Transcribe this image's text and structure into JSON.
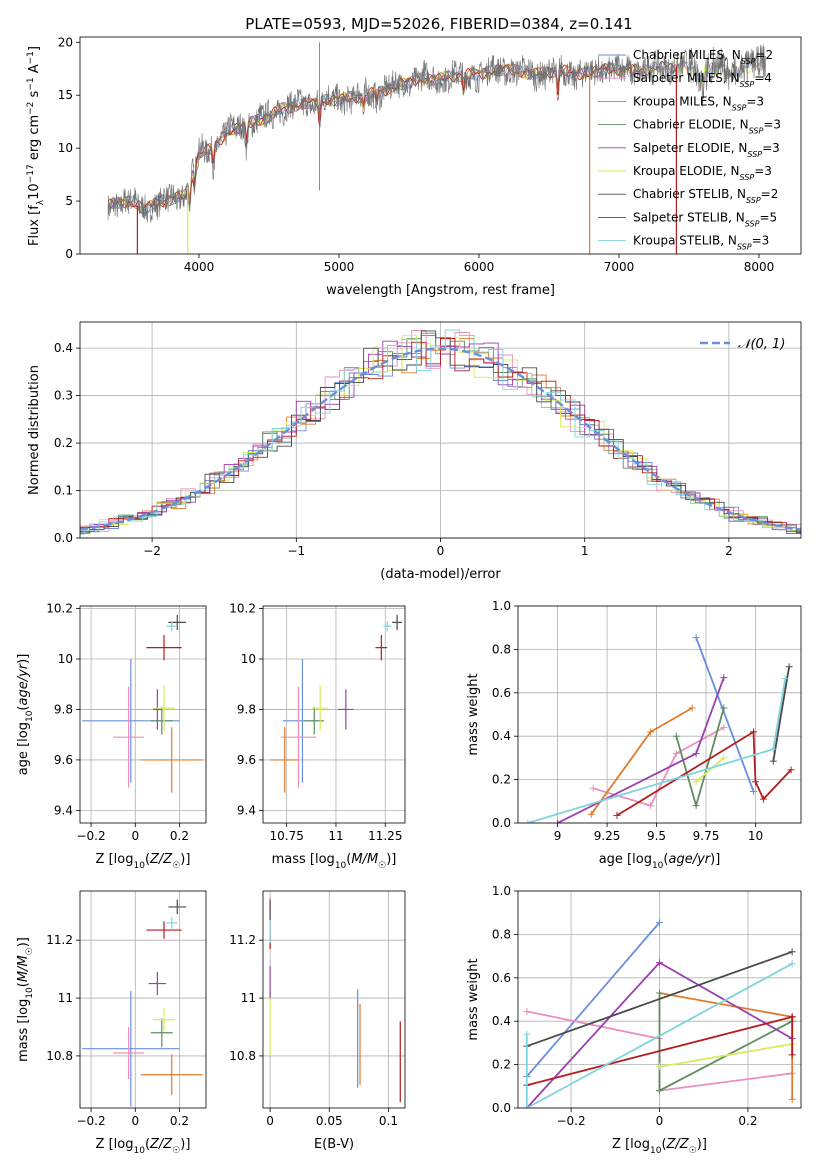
{
  "figure_title": "PLATE=0593, MJD=52026, FIBERID=0384, z=0.141",
  "colors": [
    "#6a8fde",
    "#e98fbf",
    "#e07b2a",
    "#5f8d5f",
    "#9a3fb0",
    "#d8ec5a",
    "#4a4a4a",
    "#b51c1c",
    "#7fd3dc"
  ],
  "chart_data": [
    {
      "id": "spectrum",
      "type": "line",
      "title": "PLATE=0593, MJD=52026, FIBERID=0384, z=0.141",
      "xlabel": "wavelength [Angstrom, rest frame]",
      "ylabel": "Flux [f_λ 10^-17 erg cm^-2 s^-1 A^-1]",
      "xlim": [
        3150,
        8300
      ],
      "ylim": [
        0,
        20.5
      ],
      "xticks": [
        4000,
        5000,
        6000,
        7000,
        8000
      ],
      "yticks": [
        0,
        5,
        10,
        15,
        20
      ],
      "grid": false,
      "legend_position": "upper right",
      "data_wavelength": [
        3350,
        3400,
        3500,
        3600,
        3700,
        3800,
        3900,
        4000,
        4100,
        4200,
        4300,
        4400,
        4500,
        4600,
        4700,
        4800,
        4900,
        5000,
        5100,
        5200,
        5300,
        5400,
        5500,
        5600,
        5700,
        5800,
        5900,
        6000,
        6100,
        6200,
        6300,
        6400,
        6500,
        6600,
        6700,
        6800,
        6900,
        7000,
        7100,
        7200,
        7300,
        7400,
        7500,
        7600,
        7700,
        7800,
        7900,
        8000,
        8050
      ],
      "data_flux": [
        4.5,
        4.8,
        5.0,
        4.3,
        4.8,
        5.2,
        5.5,
        9.5,
        10.0,
        11.5,
        12.0,
        12.5,
        13.0,
        13.8,
        14.0,
        14.3,
        14.5,
        14.6,
        14.8,
        15.0,
        15.4,
        15.8,
        16.3,
        16.6,
        16.5,
        16.8,
        16.9,
        17.0,
        17.3,
        17.5,
        17.2,
        17.0,
        17.2,
        17.3,
        17.0,
        17.1,
        17.5,
        17.4,
        17.3,
        17.5,
        17.6,
        17.8,
        17.5,
        17.3,
        17.6,
        17.2,
        17.5,
        18.0,
        18.2
      ],
      "series": [
        {
          "name": "Chabrier MILES, N_SSP=2",
          "label_main": "Chabrier MILES, N",
          "label_sub": "SSP",
          "label_tail": "=2"
        },
        {
          "name": "Salpeter MILES, N_SSP=4",
          "label_main": "Salpeter MILES, N",
          "label_sub": "SSP",
          "label_tail": "=4"
        },
        {
          "name": "Kroupa MILES, N_SSP=3",
          "label_main": "Kroupa MILES, N",
          "label_sub": "SSP",
          "label_tail": "=3"
        },
        {
          "name": "Chabrier ELODIE, N_SSP=3",
          "label_main": "Chabrier ELODIE, N",
          "label_sub": "SSP",
          "label_tail": "=3"
        },
        {
          "name": "Salpeter ELODIE, N_SSP=3",
          "label_main": "Salpeter ELODIE, N",
          "label_sub": "SSP",
          "label_tail": "=3"
        },
        {
          "name": "Kroupa ELODIE, N_SSP=3",
          "label_main": "Kroupa ELODIE, N",
          "label_sub": "SSP",
          "label_tail": "=3"
        },
        {
          "name": "Chabrier STELIB, N_SSP=2",
          "label_main": "Chabrier STELIB, N",
          "label_sub": "SSP",
          "label_tail": "=2"
        },
        {
          "name": "Salpeter STELIB, N_SSP=5",
          "label_main": "Salpeter STELIB, N",
          "label_sub": "SSP",
          "label_tail": "=5"
        },
        {
          "name": "Kroupa STELIB, N_SSP=3",
          "label_main": "Kroupa STELIB, N",
          "label_sub": "SSP",
          "label_tail": "=3"
        }
      ],
      "model_cutoffs": [
        {
          "series": 2,
          "x": 6790
        },
        {
          "series": 5,
          "x": 3920
        },
        {
          "series": 7,
          "x": 3560
        },
        {
          "series": 7,
          "x": 7410
        }
      ]
    },
    {
      "id": "residuals",
      "type": "line",
      "xlabel": "(data-model)/error",
      "ylabel": "Normed distribution",
      "xlim": [
        -2.5,
        2.5
      ],
      "ylim": [
        0,
        0.455
      ],
      "xticks": [
        -2,
        -1,
        0,
        1,
        2
      ],
      "yticks": [
        0.0,
        0.1,
        0.2,
        0.3,
        0.4
      ],
      "grid": true,
      "legend": [
        {
          "name": "𝒩(0, 1)",
          "style": "dashed",
          "color": "#6a8fde"
        }
      ],
      "legend_position": "upper right",
      "bin_width": 0.1
    },
    {
      "id": "age_vs_Z",
      "type": "scatter",
      "xlabel": "Z [log10(Z/Z☉)]",
      "ylabel": "age [log10(age/yr)]",
      "xlim": [
        -0.25,
        0.32
      ],
      "ylim": [
        9.35,
        10.21
      ],
      "xticks": [
        -0.2,
        0.0,
        0.2
      ],
      "yticks": [
        9.4,
        9.6,
        9.8,
        10.0,
        10.2
      ],
      "grid": true,
      "points": [
        {
          "x": -0.02,
          "y": 9.755,
          "xerr": 0.22,
          "yerr": 0.245,
          "color": 0
        },
        {
          "x": -0.03,
          "y": 9.69,
          "xerr": 0.07,
          "yerr": 0.2,
          "color": 1
        },
        {
          "x": 0.165,
          "y": 9.6,
          "xerr": 0.14,
          "yerr": 0.13,
          "color": 2
        },
        {
          "x": 0.12,
          "y": 9.755,
          "xerr": 0.05,
          "yerr": 0.055,
          "color": 3
        },
        {
          "x": 0.1,
          "y": 9.8,
          "xerr": 0.02,
          "yerr": 0.08,
          "color": 4
        },
        {
          "x": 0.13,
          "y": 9.805,
          "xerr": 0.05,
          "yerr": 0.09,
          "color": 5
        },
        {
          "x": 0.19,
          "y": 10.145,
          "xerr": 0.04,
          "yerr": 0.03,
          "color": 6
        },
        {
          "x": 0.13,
          "y": 10.045,
          "xerr": 0.08,
          "yerr": 0.05,
          "color": 7
        },
        {
          "x": 0.165,
          "y": 10.13,
          "xerr": 0.025,
          "yerr": 0.02,
          "color": 8
        }
      ]
    },
    {
      "id": "age_vs_mass",
      "type": "scatter",
      "xlabel": "mass [log10(M/M☉)]",
      "xlim": [
        10.63,
        11.35
      ],
      "ylim": [
        9.35,
        10.21
      ],
      "xticks": [
        10.75,
        11.0,
        11.25
      ],
      "yticks": [
        9.4,
        9.6,
        9.8,
        10.0,
        10.2
      ],
      "grid": true,
      "points": [
        {
          "x": 10.83,
          "y": 9.755,
          "xerr": 0.1,
          "yerr": 0.245,
          "color": 0
        },
        {
          "x": 10.81,
          "y": 9.69,
          "xerr": 0.09,
          "yerr": 0.2,
          "color": 1
        },
        {
          "x": 10.74,
          "y": 9.6,
          "xerr": 0.07,
          "yerr": 0.13,
          "color": 2
        },
        {
          "x": 10.89,
          "y": 9.755,
          "xerr": 0.05,
          "yerr": 0.055,
          "color": 3
        },
        {
          "x": 11.05,
          "y": 9.8,
          "xerr": 0.04,
          "yerr": 0.08,
          "color": 4
        },
        {
          "x": 10.92,
          "y": 9.805,
          "xerr": 0.04,
          "yerr": 0.09,
          "color": 5
        },
        {
          "x": 11.31,
          "y": 10.145,
          "xerr": 0.025,
          "yerr": 0.03,
          "color": 6
        },
        {
          "x": 11.23,
          "y": 10.045,
          "xerr": 0.03,
          "yerr": 0.05,
          "color": 7
        },
        {
          "x": 11.26,
          "y": 10.13,
          "xerr": 0.02,
          "yerr": 0.02,
          "color": 8
        }
      ]
    },
    {
      "id": "mass_weight_vs_age",
      "type": "line",
      "xlabel": "age [log10(age/yr)]",
      "ylabel": "mass weight",
      "xlim": [
        8.8,
        10.23
      ],
      "ylim": [
        0.0,
        1.0
      ],
      "xticks": [
        9.0,
        9.25,
        9.5,
        9.75,
        10.0
      ],
      "yticks": [
        0.0,
        0.2,
        0.4,
        0.6,
        0.8,
        1.0
      ],
      "grid": true,
      "series": [
        {
          "color": 0,
          "x": [
            9.7,
            9.99
          ],
          "y": [
            0.855,
            0.145
          ]
        },
        {
          "color": 1,
          "x": [
            9.18,
            9.47,
            9.6,
            9.84
          ],
          "y": [
            0.16,
            0.08,
            0.32,
            0.44
          ]
        },
        {
          "color": 2,
          "x": [
            9.17,
            9.47,
            9.68
          ],
          "y": [
            0.04,
            0.42,
            0.53
          ]
        },
        {
          "color": 3,
          "x": [
            9.6,
            9.7,
            9.84
          ],
          "y": [
            0.4,
            0.08,
            0.53
          ]
        },
        {
          "color": 4,
          "x": [
            9.0,
            9.7,
            9.84
          ],
          "y": [
            0.0,
            0.32,
            0.67
          ]
        },
        {
          "color": 5,
          "x": [
            9.7,
            9.84
          ],
          "y": [
            0.19,
            0.3
          ]
        },
        {
          "color": 6,
          "x": [
            10.09,
            10.17
          ],
          "y": [
            0.285,
            0.72
          ]
        },
        {
          "color": 7,
          "x": [
            9.3,
            9.99,
            10.0,
            10.04,
            10.18
          ],
          "y": [
            0.035,
            0.42,
            0.19,
            0.11,
            0.245
          ]
        },
        {
          "color": 8,
          "x": [
            8.85,
            10.09,
            10.15
          ],
          "y": [
            0.0,
            0.34,
            0.665
          ]
        }
      ]
    },
    {
      "id": "mass_vs_Z",
      "type": "scatter",
      "xlabel": "Z [log10(Z/Z☉)]",
      "ylabel": "mass [log10(M/M☉)]",
      "xlim": [
        -0.25,
        0.32
      ],
      "ylim": [
        10.62,
        11.37
      ],
      "xticks": [
        -0.2,
        0.0,
        0.2
      ],
      "yticks": [
        10.8,
        11.0,
        11.2
      ],
      "grid": true,
      "points": [
        {
          "x": -0.02,
          "y": 10.825,
          "xerr": 0.22,
          "yerr": 0.2,
          "color": 0
        },
        {
          "x": -0.03,
          "y": 10.81,
          "xerr": 0.07,
          "yerr": 0.09,
          "color": 1
        },
        {
          "x": 0.165,
          "y": 10.735,
          "xerr": 0.14,
          "yerr": 0.07,
          "color": 2
        },
        {
          "x": 0.12,
          "y": 10.88,
          "xerr": 0.05,
          "yerr": 0.05,
          "color": 3
        },
        {
          "x": 0.1,
          "y": 11.05,
          "xerr": 0.04,
          "yerr": 0.04,
          "color": 4
        },
        {
          "x": 0.13,
          "y": 10.925,
          "xerr": 0.05,
          "yerr": 0.04,
          "color": 5
        },
        {
          "x": 0.19,
          "y": 11.315,
          "xerr": 0.04,
          "yerr": 0.025,
          "color": 6
        },
        {
          "x": 0.13,
          "y": 11.235,
          "xerr": 0.08,
          "yerr": 0.03,
          "color": 7
        },
        {
          "x": 0.165,
          "y": 11.26,
          "xerr": 0.025,
          "yerr": 0.02,
          "color": 8
        }
      ]
    },
    {
      "id": "mass_vs_EBV",
      "type": "scatter",
      "xlabel": "E(B-V)",
      "xlim": [
        -0.006,
        0.114
      ],
      "ylim": [
        10.62,
        11.37
      ],
      "xticks": [
        0.0,
        0.05,
        0.1
      ],
      "yticks": [
        10.8,
        11.0,
        11.2
      ],
      "grid": true,
      "points": [
        {
          "x": 0.074,
          "y": 10.86,
          "xerr": 0.0,
          "yerr": 0.17,
          "color": 0
        },
        {
          "x": 0.0,
          "y": 11.26,
          "xerr": 0.0,
          "yerr": 0.09,
          "color": 1
        },
        {
          "x": 0.076,
          "y": 10.84,
          "xerr": 0.0,
          "yerr": 0.14,
          "color": 2
        },
        {
          "x": 0.11,
          "y": 10.78,
          "xerr": 0.0,
          "yerr": 0.14,
          "color": 7
        },
        {
          "x": 0.0,
          "y": 11.05,
          "xerr": 0.0,
          "yerr": 0.06,
          "color": 4
        },
        {
          "x": 0.0,
          "y": 10.9,
          "xerr": 0.0,
          "yerr": 0.1,
          "color": 5
        },
        {
          "x": 0.0,
          "y": 11.2,
          "xerr": 0.0,
          "yerr": 0.03,
          "color": 7
        },
        {
          "x": 0.0,
          "y": 11.3,
          "xerr": 0.0,
          "yerr": 0.04,
          "color": 6
        },
        {
          "x": 0.0,
          "y": 11.23,
          "xerr": 0.0,
          "yerr": 0.04,
          "color": 8
        }
      ]
    },
    {
      "id": "mass_weight_vs_Z",
      "type": "line",
      "xlabel": "Z [log10(Z/Z☉)]",
      "ylabel": "mass weight",
      "xlim": [
        -0.32,
        0.32
      ],
      "ylim": [
        0.0,
        1.0
      ],
      "xticks": [
        -0.2,
        0.0,
        0.2
      ],
      "yticks": [
        0.0,
        0.2,
        0.4,
        0.6,
        0.8,
        1.0
      ],
      "grid": true,
      "series": [
        {
          "color": 0,
          "x": [
            -0.3,
            0.0
          ],
          "y": [
            0.145,
            0.855
          ]
        },
        {
          "color": 1,
          "x": [
            -0.3,
            0.0,
            0.0,
            0.3
          ],
          "y": [
            0.445,
            0.32,
            0.08,
            0.16
          ]
        },
        {
          "color": 2,
          "x": [
            0.0,
            0.3,
            0.3
          ],
          "y": [
            0.53,
            0.42,
            0.04
          ]
        },
        {
          "color": 3,
          "x": [
            0.0,
            0.0,
            0.3
          ],
          "y": [
            0.53,
            0.08,
            0.4
          ]
        },
        {
          "color": 4,
          "x": [
            -0.3,
            0.0,
            0.3
          ],
          "y": [
            0.0,
            0.67,
            0.32
          ]
        },
        {
          "color": 5,
          "x": [
            0.0,
            0.3
          ],
          "y": [
            0.19,
            0.295
          ]
        },
        {
          "color": 6,
          "x": [
            -0.3,
            0.3
          ],
          "y": [
            0.285,
            0.72
          ]
        },
        {
          "color": 7,
          "x": [
            -0.3,
            0.3,
            0.3,
            0.3
          ],
          "y": [
            0.105,
            0.42,
            0.245,
            0.42
          ]
        },
        {
          "color": 8,
          "x": [
            -0.3,
            -0.3,
            0.3
          ],
          "y": [
            0.34,
            0.0,
            0.665
          ]
        }
      ]
    }
  ]
}
